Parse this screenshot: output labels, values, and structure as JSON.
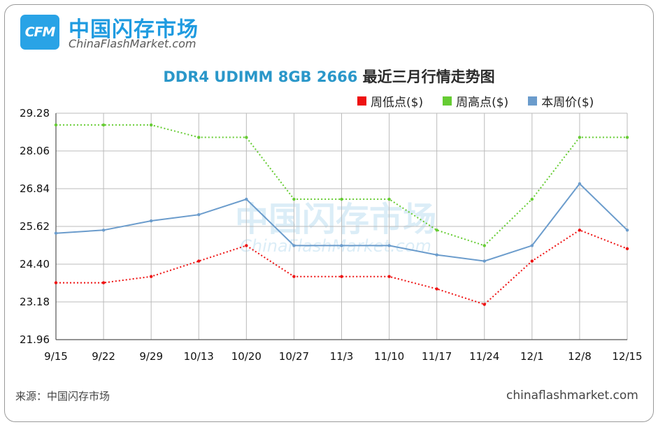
{
  "brand": {
    "logo_text": "CFM",
    "name_cn": "中国闪存市场",
    "name_en": "ChinaFlashMarket.com"
  },
  "watermark": {
    "cn": "中国闪存市场",
    "en": "ChinaFlashMarket.com"
  },
  "footer": {
    "source": "来源：中国闪存市场",
    "site": "chinaflashmarket.com"
  },
  "colors": {
    "low": "#ee1111",
    "high": "#66cc33",
    "current": "#6b9ccc",
    "title": "#2a97c9",
    "grid": "#bbbbbb"
  },
  "chart_data": {
    "type": "line",
    "title_en": "DDR4 UDIMM 8GB 2666",
    "title_cn": "最近三月行情走势图",
    "categories": [
      "9/15",
      "9/22",
      "9/29",
      "10/13",
      "10/20",
      "10/27",
      "11/3",
      "11/10",
      "11/17",
      "11/24",
      "12/1",
      "12/8",
      "12/15"
    ],
    "y_ticks": [
      "29.28",
      "28.06",
      "26.84",
      "25.62",
      "24.40",
      "23.18",
      "21.96"
    ],
    "ylim": [
      21.96,
      29.28
    ],
    "grid": true,
    "legend_position": "top-right",
    "series": [
      {
        "name": "周低点($)",
        "color": "#ee1111",
        "style": "dotted",
        "values": [
          23.8,
          23.8,
          24.0,
          24.5,
          25.0,
          24.0,
          24.0,
          24.0,
          23.6,
          23.1,
          24.5,
          25.5,
          24.9
        ]
      },
      {
        "name": "周高点($)",
        "color": "#66cc33",
        "style": "dotted",
        "values": [
          28.9,
          28.9,
          28.9,
          28.5,
          28.5,
          26.5,
          26.5,
          26.5,
          25.5,
          25.0,
          26.5,
          28.5,
          28.5
        ]
      },
      {
        "name": "本周价($)",
        "color": "#6b9ccc",
        "style": "solid",
        "values": [
          25.4,
          25.5,
          25.8,
          26.0,
          26.5,
          25.0,
          25.0,
          25.0,
          24.7,
          24.5,
          25.0,
          27.0,
          25.5
        ]
      }
    ]
  }
}
